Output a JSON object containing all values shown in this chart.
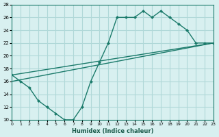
{
  "xlabel": "Humidex (Indice chaleur)",
  "bg_color": "#d8f0f0",
  "grid_color": "#b0d8d8",
  "line_color": "#1a7a6a",
  "xlim": [
    0,
    23
  ],
  "ylim": [
    10,
    28
  ],
  "xticks": [
    0,
    1,
    2,
    3,
    4,
    5,
    6,
    7,
    8,
    9,
    10,
    11,
    12,
    13,
    14,
    15,
    16,
    17,
    18,
    19,
    20,
    21,
    22,
    23
  ],
  "yticks": [
    10,
    12,
    14,
    16,
    18,
    20,
    22,
    24,
    26,
    28
  ],
  "line1_x": [
    0,
    1,
    2,
    3,
    4,
    5,
    6,
    7,
    8,
    9,
    10,
    11,
    12,
    13,
    14,
    15,
    16,
    17,
    18,
    19,
    20,
    21,
    22,
    23
  ],
  "line1_y": [
    17,
    16,
    15,
    13,
    12,
    11,
    10,
    10,
    12,
    16,
    19,
    22,
    26,
    26,
    26,
    27,
    26,
    27,
    26,
    25,
    24,
    22,
    22,
    22
  ],
  "line2_x": [
    0,
    23
  ],
  "line2_y": [
    16,
    22
  ],
  "line3_x": [
    0,
    23
  ],
  "line3_y": [
    17,
    22
  ]
}
